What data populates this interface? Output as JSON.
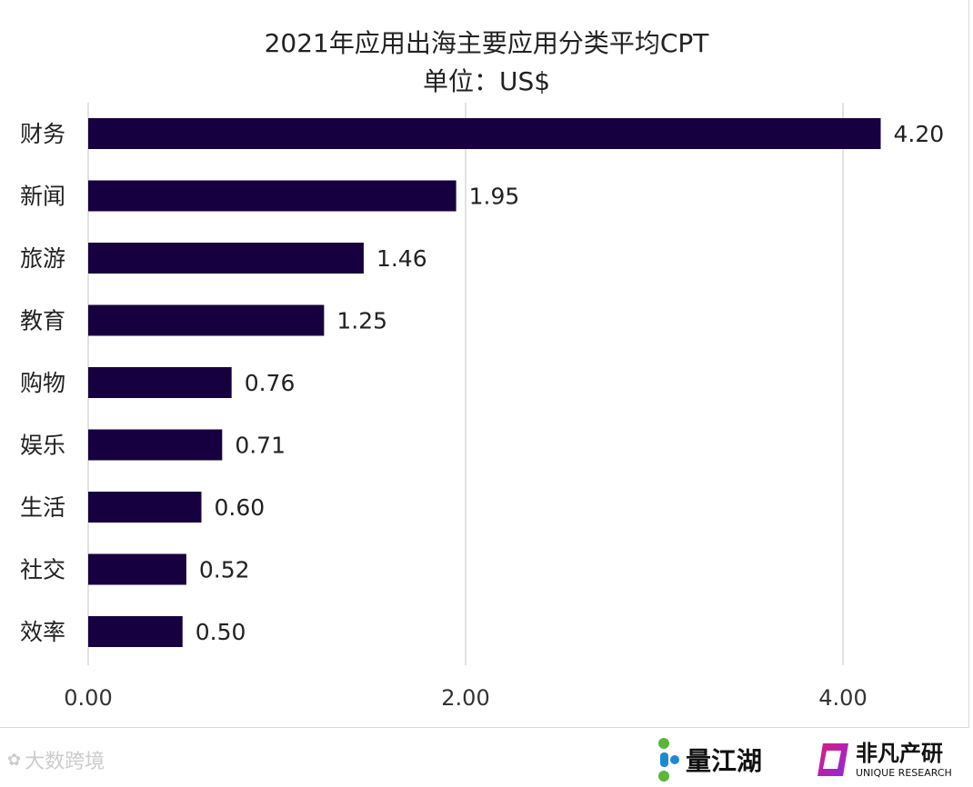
{
  "chart_data": {
    "type": "bar",
    "orientation": "horizontal",
    "title": "2021年应用出海主要应用分类平均CPT",
    "subtitle": "单位：US$",
    "categories": [
      "财务",
      "新闻",
      "旅游",
      "教育",
      "购物",
      "娱乐",
      "生活",
      "社交",
      "效率"
    ],
    "values": [
      4.2,
      1.95,
      1.46,
      1.25,
      0.76,
      0.71,
      0.6,
      0.52,
      0.5
    ],
    "data_labels": [
      "4.20",
      "1.95",
      "1.46",
      "1.25",
      "0.76",
      "0.71",
      "0.60",
      "0.52",
      "0.50"
    ],
    "xlim": [
      0,
      4.4
    ],
    "xticks": [
      0,
      2,
      4
    ],
    "xtick_labels": [
      "0.00",
      "2.00",
      "4.00"
    ],
    "grid": "vertical",
    "bar_color": "#170040"
  },
  "footer": {
    "watermark": "大数跨境",
    "logo1": "量江湖",
    "logo2": "非凡产研",
    "logo2_sub": "UNIQUE RESEARCH"
  }
}
